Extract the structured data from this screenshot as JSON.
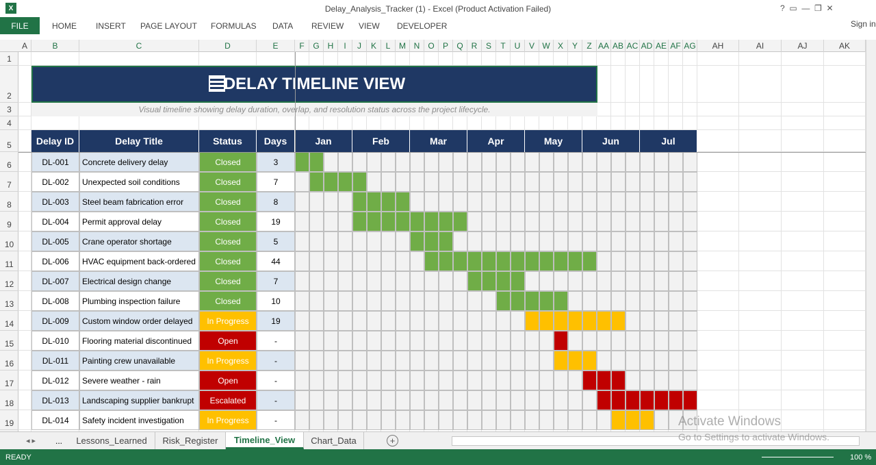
{
  "window": {
    "title": "Delay_Analysis_Tracker (1) - Excel (Product Activation Failed)",
    "sign_in": "Sign in"
  },
  "ribbon": {
    "file": "FILE",
    "tabs": [
      "HOME",
      "INSERT",
      "PAGE LAYOUT",
      "FORMULAS",
      "DATA",
      "REVIEW",
      "VIEW",
      "DEVELOPER"
    ]
  },
  "columns": [
    "A",
    "B",
    "C",
    "D",
    "E",
    "F",
    "G",
    "H",
    "I",
    "J",
    "K",
    "L",
    "M",
    "N",
    "O",
    "P",
    "Q",
    "R",
    "S",
    "T",
    "U",
    "V",
    "W",
    "X",
    "Y",
    "Z",
    "AA",
    "AB",
    "AC",
    "AD",
    "AE",
    "AF",
    "AG",
    "AH",
    "AI",
    "AJ",
    "AK"
  ],
  "rows": [
    1,
    2,
    3,
    4,
    5,
    6,
    7,
    8,
    9,
    10,
    11,
    12,
    13,
    14,
    15,
    16,
    17,
    18,
    19
  ],
  "sheet": {
    "title": "DELAY TIMELINE VIEW",
    "subtitle": "Visual timeline showing delay duration, overlap, and resolution status across the project lifecycle.",
    "headers": [
      "Delay ID",
      "Delay Title",
      "Status",
      "Days"
    ],
    "months": [
      "Jan",
      "Feb",
      "Mar",
      "Apr",
      "May",
      "Jun",
      "Jul"
    ],
    "status_colors": {
      "Closed": "#70ad47",
      "In Progress": "#ffc000",
      "Open": "#c00000",
      "Escalated": "#c00000"
    },
    "delays": [
      {
        "id": "DL-001",
        "title": "Concrete delivery delay",
        "status": "Closed",
        "days": 3
      },
      {
        "id": "DL-002",
        "title": "Unexpected soil conditions",
        "status": "Closed",
        "days": 7
      },
      {
        "id": "DL-003",
        "title": "Steel beam fabrication error",
        "status": "Closed",
        "days": 8
      },
      {
        "id": "DL-004",
        "title": "Permit approval delay",
        "status": "Closed",
        "days": 19
      },
      {
        "id": "DL-005",
        "title": "Crane operator shortage",
        "status": "Closed",
        "days": 5
      },
      {
        "id": "DL-006",
        "title": "HVAC equipment back-ordered",
        "status": "Closed",
        "days": 44
      },
      {
        "id": "DL-007",
        "title": "Electrical design change",
        "status": "Closed",
        "days": 7
      },
      {
        "id": "DL-008",
        "title": "Plumbing inspection failure",
        "status": "Closed",
        "days": 10
      },
      {
        "id": "DL-009",
        "title": "Custom window order delayed",
        "status": "In Progress",
        "days": 19
      },
      {
        "id": "DL-010",
        "title": "Flooring material discontinued",
        "status": "Open",
        "days": "-"
      },
      {
        "id": "DL-011",
        "title": "Painting crew unavailable",
        "status": "In Progress",
        "days": "-"
      },
      {
        "id": "DL-012",
        "title": "Severe weather - rain",
        "status": "Open",
        "days": "-"
      },
      {
        "id": "DL-013",
        "title": "Landscaping supplier bankrupt",
        "status": "Escalated",
        "days": "-"
      },
      {
        "id": "DL-014",
        "title": "Safety incident investigation",
        "status": "In Progress",
        "days": "-"
      }
    ]
  },
  "tabs": {
    "more": "...",
    "sheets": [
      "Lessons_Learned",
      "Risk_Register",
      "Timeline_View",
      "Chart_Data"
    ],
    "active": 2
  },
  "status_bar": {
    "ready": "READY",
    "zoom": "100 %"
  },
  "watermark": {
    "line1": "Activate Windows",
    "line2": "Go to Settings to activate Windows."
  }
}
